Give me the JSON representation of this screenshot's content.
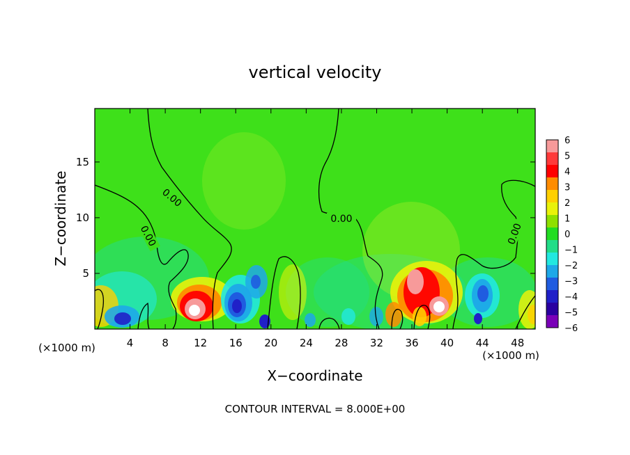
{
  "chart_data": {
    "type": "heatmap",
    "title": "vertical velocity",
    "xlabel": "X−coordinate",
    "ylabel": "Z−coordinate",
    "x_unit": "(×1000 m)",
    "x_unit_right": "(×1000 m)",
    "footer": "CONTOUR INTERVAL = 8.000E+00",
    "xlim": [
      0,
      50
    ],
    "ylim": [
      0,
      19.8
    ],
    "x_ticks": [
      4,
      8,
      12,
      16,
      20,
      24,
      28,
      32,
      36,
      40,
      44,
      48
    ],
    "y_ticks": [
      5,
      10,
      15
    ],
    "colorbar": {
      "labels": [
        "6",
        "5",
        "4",
        "3",
        "2",
        "1",
        "0",
        "−1",
        "−2",
        "−3",
        "−4",
        "−5",
        "−6"
      ],
      "colors": [
        "#f79a9a",
        "#ff3a3a",
        "#ff0000",
        "#ff8c00",
        "#ffd000",
        "#e9f20a",
        "#8ee000",
        "#22dd22",
        "#22dd88",
        "#22e8e0",
        "#1ea8e8",
        "#1f5ce0",
        "#2020c8",
        "#2a00a0",
        "#7a00b8"
      ]
    },
    "contour_labels": [
      "0.00",
      "0.00",
      "0.00",
      "0.00"
    ],
    "features": [
      {
        "x": 11,
        "z": 2.0,
        "value": 6
      },
      {
        "x": 38.8,
        "z": 2.0,
        "value": 6
      },
      {
        "x": 36.5,
        "z": 4.2,
        "value": 5
      },
      {
        "x": 16.5,
        "z": 2.5,
        "value": -5
      },
      {
        "x": 18.8,
        "z": 4.5,
        "value": -3
      },
      {
        "x": 3.0,
        "z": 1.2,
        "value": -4
      },
      {
        "x": 44.5,
        "z": 3.5,
        "value": -4
      },
      {
        "x": 19.5,
        "z": 0.6,
        "value": -5
      }
    ]
  }
}
